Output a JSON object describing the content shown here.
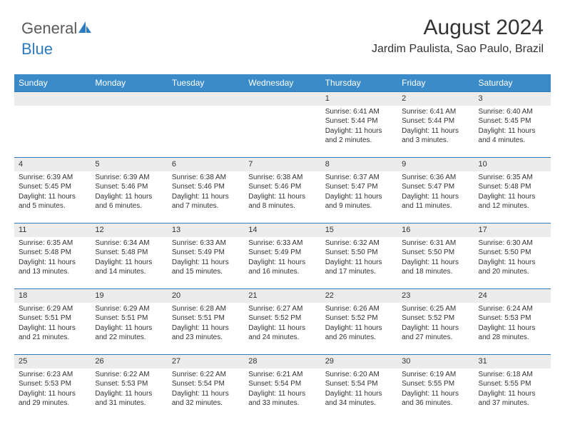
{
  "logo": {
    "text1": "General",
    "text2": "Blue"
  },
  "header": {
    "month_title": "August 2024",
    "location": "Jardim Paulista, Sao Paulo, Brazil"
  },
  "colors": {
    "header_bg": "#3b8bc9",
    "header_text": "#ffffff",
    "daynum_bg": "#ececec",
    "row_border": "#2e7cc0",
    "body_text": "#333333",
    "logo_gray": "#5a5a5a",
    "logo_blue": "#2e7cc0",
    "page_bg": "#ffffff"
  },
  "weekdays": [
    "Sunday",
    "Monday",
    "Tuesday",
    "Wednesday",
    "Thursday",
    "Friday",
    "Saturday"
  ],
  "weeks": [
    [
      null,
      null,
      null,
      null,
      {
        "day": "1",
        "sunrise": "Sunrise: 6:41 AM",
        "sunset": "Sunset: 5:44 PM",
        "daylight": "Daylight: 11 hours and 2 minutes."
      },
      {
        "day": "2",
        "sunrise": "Sunrise: 6:41 AM",
        "sunset": "Sunset: 5:44 PM",
        "daylight": "Daylight: 11 hours and 3 minutes."
      },
      {
        "day": "3",
        "sunrise": "Sunrise: 6:40 AM",
        "sunset": "Sunset: 5:45 PM",
        "daylight": "Daylight: 11 hours and 4 minutes."
      }
    ],
    [
      {
        "day": "4",
        "sunrise": "Sunrise: 6:39 AM",
        "sunset": "Sunset: 5:45 PM",
        "daylight": "Daylight: 11 hours and 5 minutes."
      },
      {
        "day": "5",
        "sunrise": "Sunrise: 6:39 AM",
        "sunset": "Sunset: 5:46 PM",
        "daylight": "Daylight: 11 hours and 6 minutes."
      },
      {
        "day": "6",
        "sunrise": "Sunrise: 6:38 AM",
        "sunset": "Sunset: 5:46 PM",
        "daylight": "Daylight: 11 hours and 7 minutes."
      },
      {
        "day": "7",
        "sunrise": "Sunrise: 6:38 AM",
        "sunset": "Sunset: 5:46 PM",
        "daylight": "Daylight: 11 hours and 8 minutes."
      },
      {
        "day": "8",
        "sunrise": "Sunrise: 6:37 AM",
        "sunset": "Sunset: 5:47 PM",
        "daylight": "Daylight: 11 hours and 9 minutes."
      },
      {
        "day": "9",
        "sunrise": "Sunrise: 6:36 AM",
        "sunset": "Sunset: 5:47 PM",
        "daylight": "Daylight: 11 hours and 11 minutes."
      },
      {
        "day": "10",
        "sunrise": "Sunrise: 6:35 AM",
        "sunset": "Sunset: 5:48 PM",
        "daylight": "Daylight: 11 hours and 12 minutes."
      }
    ],
    [
      {
        "day": "11",
        "sunrise": "Sunrise: 6:35 AM",
        "sunset": "Sunset: 5:48 PM",
        "daylight": "Daylight: 11 hours and 13 minutes."
      },
      {
        "day": "12",
        "sunrise": "Sunrise: 6:34 AM",
        "sunset": "Sunset: 5:48 PM",
        "daylight": "Daylight: 11 hours and 14 minutes."
      },
      {
        "day": "13",
        "sunrise": "Sunrise: 6:33 AM",
        "sunset": "Sunset: 5:49 PM",
        "daylight": "Daylight: 11 hours and 15 minutes."
      },
      {
        "day": "14",
        "sunrise": "Sunrise: 6:33 AM",
        "sunset": "Sunset: 5:49 PM",
        "daylight": "Daylight: 11 hours and 16 minutes."
      },
      {
        "day": "15",
        "sunrise": "Sunrise: 6:32 AM",
        "sunset": "Sunset: 5:50 PM",
        "daylight": "Daylight: 11 hours and 17 minutes."
      },
      {
        "day": "16",
        "sunrise": "Sunrise: 6:31 AM",
        "sunset": "Sunset: 5:50 PM",
        "daylight": "Daylight: 11 hours and 18 minutes."
      },
      {
        "day": "17",
        "sunrise": "Sunrise: 6:30 AM",
        "sunset": "Sunset: 5:50 PM",
        "daylight": "Daylight: 11 hours and 20 minutes."
      }
    ],
    [
      {
        "day": "18",
        "sunrise": "Sunrise: 6:29 AM",
        "sunset": "Sunset: 5:51 PM",
        "daylight": "Daylight: 11 hours and 21 minutes."
      },
      {
        "day": "19",
        "sunrise": "Sunrise: 6:29 AM",
        "sunset": "Sunset: 5:51 PM",
        "daylight": "Daylight: 11 hours and 22 minutes."
      },
      {
        "day": "20",
        "sunrise": "Sunrise: 6:28 AM",
        "sunset": "Sunset: 5:51 PM",
        "daylight": "Daylight: 11 hours and 23 minutes."
      },
      {
        "day": "21",
        "sunrise": "Sunrise: 6:27 AM",
        "sunset": "Sunset: 5:52 PM",
        "daylight": "Daylight: 11 hours and 24 minutes."
      },
      {
        "day": "22",
        "sunrise": "Sunrise: 6:26 AM",
        "sunset": "Sunset: 5:52 PM",
        "daylight": "Daylight: 11 hours and 26 minutes."
      },
      {
        "day": "23",
        "sunrise": "Sunrise: 6:25 AM",
        "sunset": "Sunset: 5:52 PM",
        "daylight": "Daylight: 11 hours and 27 minutes."
      },
      {
        "day": "24",
        "sunrise": "Sunrise: 6:24 AM",
        "sunset": "Sunset: 5:53 PM",
        "daylight": "Daylight: 11 hours and 28 minutes."
      }
    ],
    [
      {
        "day": "25",
        "sunrise": "Sunrise: 6:23 AM",
        "sunset": "Sunset: 5:53 PM",
        "daylight": "Daylight: 11 hours and 29 minutes."
      },
      {
        "day": "26",
        "sunrise": "Sunrise: 6:22 AM",
        "sunset": "Sunset: 5:53 PM",
        "daylight": "Daylight: 11 hours and 31 minutes."
      },
      {
        "day": "27",
        "sunrise": "Sunrise: 6:22 AM",
        "sunset": "Sunset: 5:54 PM",
        "daylight": "Daylight: 11 hours and 32 minutes."
      },
      {
        "day": "28",
        "sunrise": "Sunrise: 6:21 AM",
        "sunset": "Sunset: 5:54 PM",
        "daylight": "Daylight: 11 hours and 33 minutes."
      },
      {
        "day": "29",
        "sunrise": "Sunrise: 6:20 AM",
        "sunset": "Sunset: 5:54 PM",
        "daylight": "Daylight: 11 hours and 34 minutes."
      },
      {
        "day": "30",
        "sunrise": "Sunrise: 6:19 AM",
        "sunset": "Sunset: 5:55 PM",
        "daylight": "Daylight: 11 hours and 36 minutes."
      },
      {
        "day": "31",
        "sunrise": "Sunrise: 6:18 AM",
        "sunset": "Sunset: 5:55 PM",
        "daylight": "Daylight: 11 hours and 37 minutes."
      }
    ]
  ]
}
